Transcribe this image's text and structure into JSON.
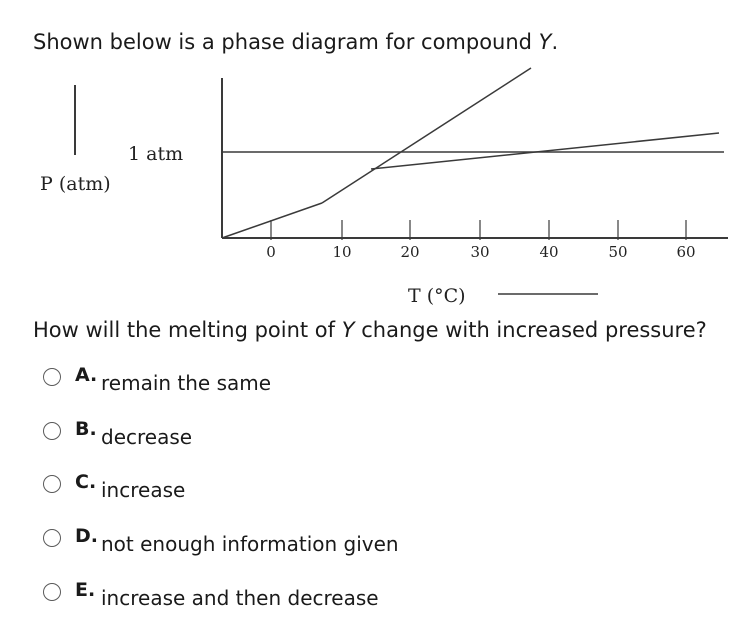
{
  "question": {
    "intro_prefix": "Shown below is a phase diagram for compound ",
    "intro_compound": "Y",
    "intro_suffix": ".",
    "main_prefix": "How will the melting point of ",
    "main_compound": "Y",
    "main_suffix": " change with increased pressure?"
  },
  "diagram": {
    "y_axis_label": "P (atm)",
    "pressure_marker_label": "1 atm",
    "x_axis_label": "T (°C)",
    "x_ticks": [
      "0",
      "10",
      "20",
      "30",
      "40",
      "50",
      "60"
    ]
  },
  "choices": [
    {
      "letter": "A.",
      "text": "remain the same"
    },
    {
      "letter": "B.",
      "text": "decrease"
    },
    {
      "letter": "C.",
      "text": "increase"
    },
    {
      "letter": "D.",
      "text": "not enough information given"
    },
    {
      "letter": "E.",
      "text": "increase and then decrease"
    }
  ],
  "colors": {
    "line": "#3a3a3a",
    "text": "#1a1a1a",
    "radio_border": "#5a5a5a"
  }
}
